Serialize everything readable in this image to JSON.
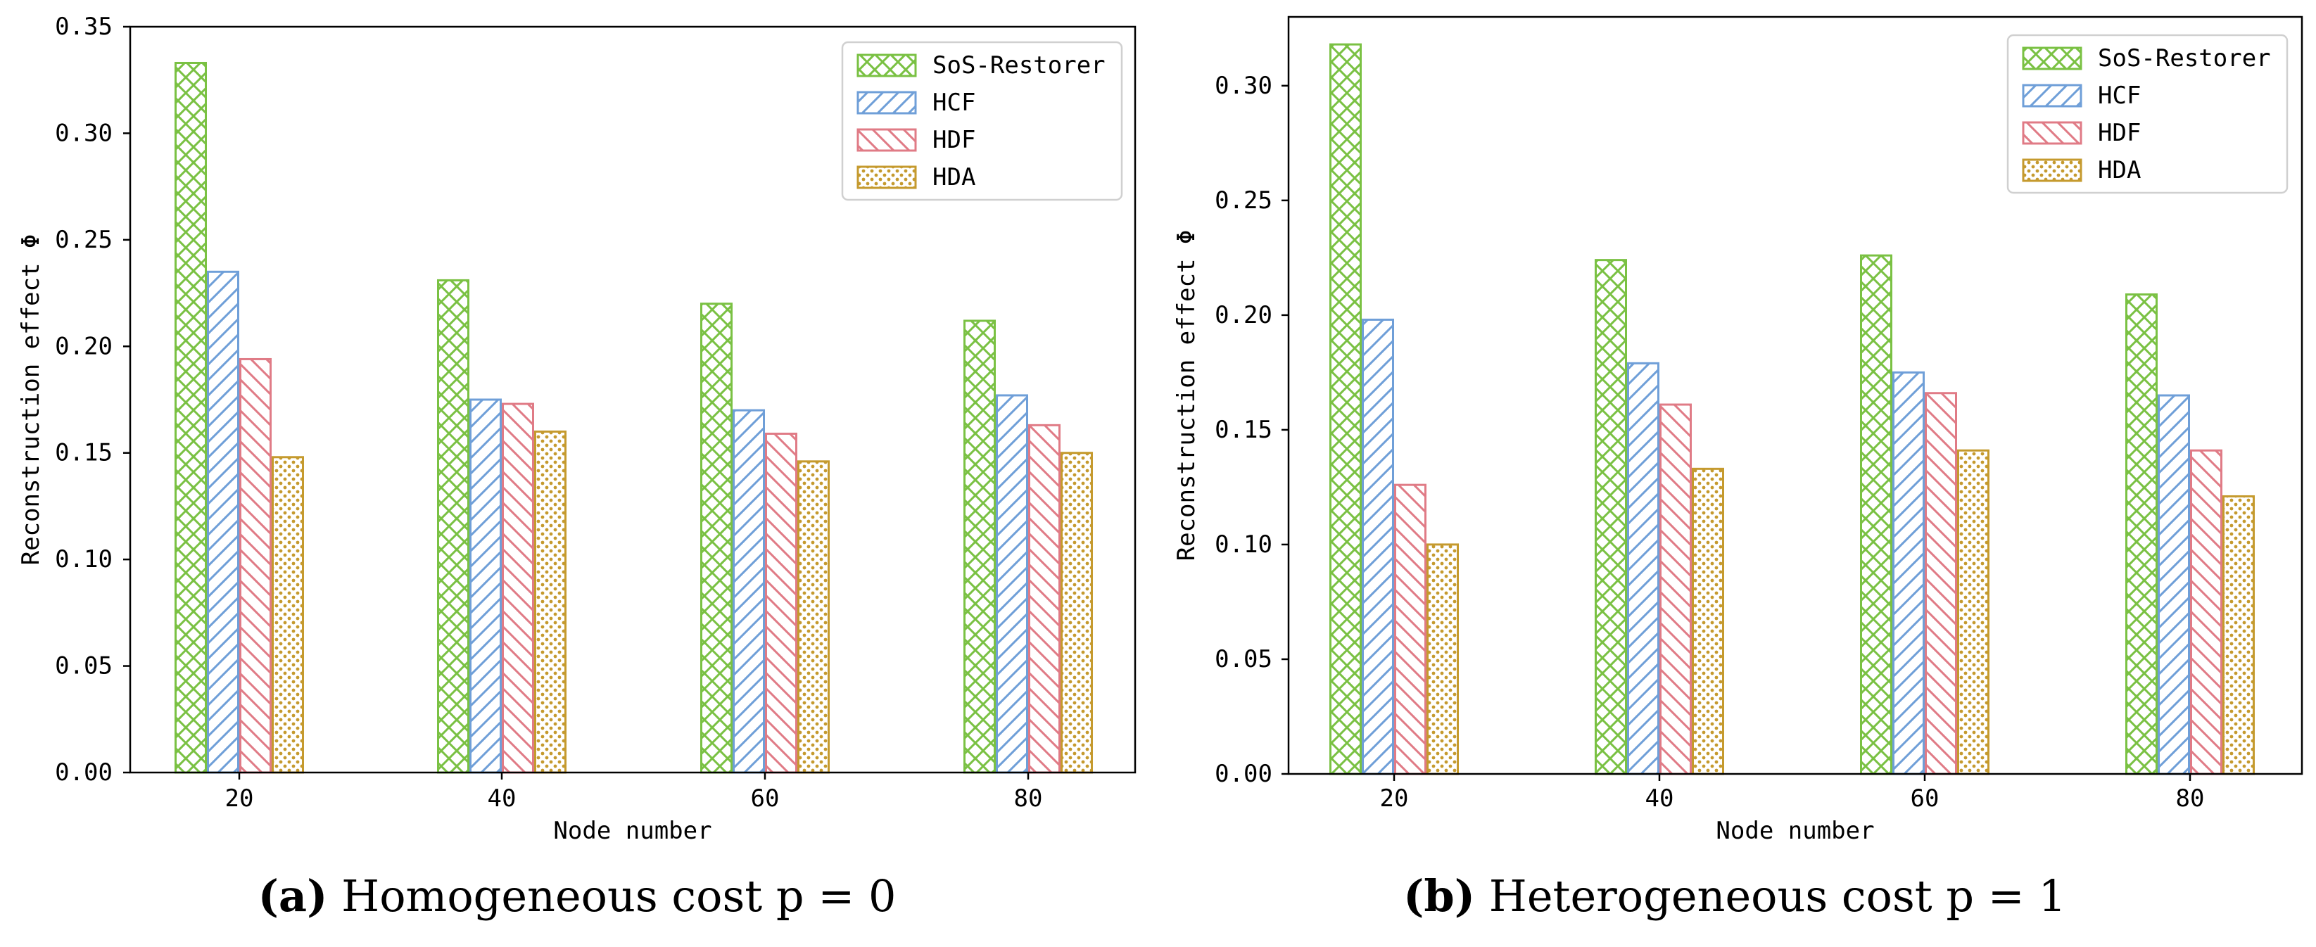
{
  "colors": {
    "sos": "#7ac143",
    "hcf": "#6f9fd8",
    "hdf": "#e07b86",
    "hda": "#c59a2e",
    "axis": "#000000"
  },
  "chart_data": [
    {
      "type": "bar",
      "panel": "a",
      "title": "",
      "caption_label": "(a)",
      "caption_text": "Homogeneous cost p = 0",
      "xlabel": "Node number",
      "ylabel": "Reconstruction effect Φ",
      "categories": [
        "20",
        "40",
        "60",
        "80"
      ],
      "ylim": [
        0,
        0.35
      ],
      "yticks": [
        "0.00",
        "0.05",
        "0.10",
        "0.15",
        "0.20",
        "0.25",
        "0.30",
        "0.35"
      ],
      "ytick_values": [
        0,
        0.05,
        0.1,
        0.15,
        0.2,
        0.25,
        0.3,
        0.35
      ],
      "legend_position": "top-right",
      "series": [
        {
          "name": "SoS-Restorer",
          "key": "sos",
          "hatch": "cross",
          "values": [
            0.333,
            0.231,
            0.22,
            0.212
          ]
        },
        {
          "name": "HCF",
          "key": "hcf",
          "hatch": "slash",
          "values": [
            0.235,
            0.175,
            0.17,
            0.177
          ]
        },
        {
          "name": "HDF",
          "key": "hdf",
          "hatch": "backslash",
          "values": [
            0.194,
            0.173,
            0.159,
            0.163
          ]
        },
        {
          "name": "HDA",
          "key": "hda",
          "hatch": "dots",
          "values": [
            0.148,
            0.16,
            0.146,
            0.15
          ]
        }
      ]
    },
    {
      "type": "bar",
      "panel": "b",
      "title": "",
      "caption_label": "(b)",
      "caption_text": "Heterogeneous cost p = 1",
      "xlabel": "Node number",
      "ylabel": "Reconstruction effect Φ",
      "categories": [
        "20",
        "40",
        "60",
        "80"
      ],
      "ylim": [
        0,
        0.33
      ],
      "yticks": [
        "0.00",
        "0.05",
        "0.10",
        "0.15",
        "0.20",
        "0.25",
        "0.30"
      ],
      "ytick_values": [
        0,
        0.05,
        0.1,
        0.15,
        0.2,
        0.25,
        0.3
      ],
      "legend_position": "top-right",
      "series": [
        {
          "name": "SoS-Restorer",
          "key": "sos",
          "hatch": "cross",
          "values": [
            0.318,
            0.224,
            0.226,
            0.209
          ]
        },
        {
          "name": "HCF",
          "key": "hcf",
          "hatch": "slash",
          "values": [
            0.198,
            0.179,
            0.175,
            0.165
          ]
        },
        {
          "name": "HDF",
          "key": "hdf",
          "hatch": "backslash",
          "values": [
            0.126,
            0.161,
            0.166,
            0.141
          ]
        },
        {
          "name": "HDA",
          "key": "hda",
          "hatch": "dots",
          "values": [
            0.1,
            0.133,
            0.141,
            0.121
          ]
        }
      ]
    }
  ]
}
